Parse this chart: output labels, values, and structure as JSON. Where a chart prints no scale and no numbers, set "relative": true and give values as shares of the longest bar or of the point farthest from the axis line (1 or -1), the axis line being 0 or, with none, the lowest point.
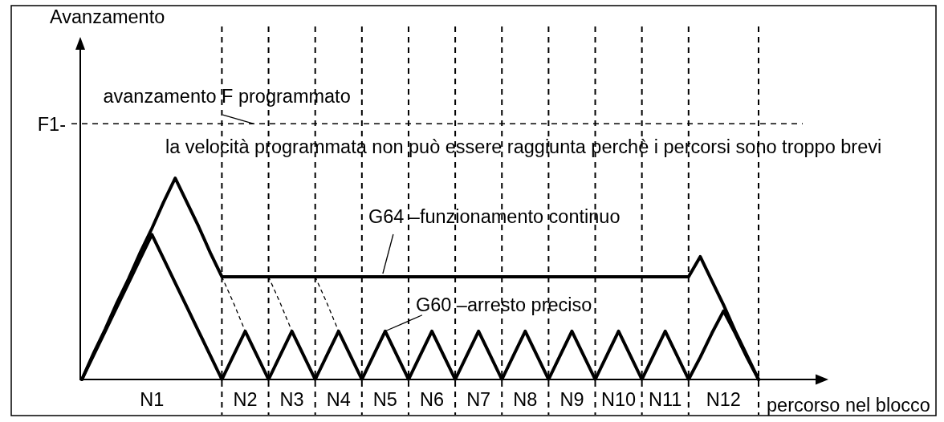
{
  "chart_data": {
    "type": "line",
    "xlabel": "percorso nel blocco",
    "relative": true,
    "categories": [
      null,
      null,
      null,
      null,
      null,
      null,
      "N1",
      null,
      null,
      null,
      null,
      null,
      null,
      null,
      "N2",
      null,
      null,
      null,
      "N3",
      null,
      null,
      null,
      "N4",
      null,
      null,
      null,
      "N5",
      null,
      null,
      null,
      "N6",
      null,
      null,
      null,
      "N7",
      null,
      null,
      null,
      "N8",
      null,
      null,
      null,
      "N9",
      null,
      null,
      null,
      "N10",
      null,
      null,
      null,
      "N11",
      null,
      null,
      null,
      null,
      "N12",
      null,
      null,
      null
    ],
    "series": [
      {
        "color": "#000000",
        "line_style": "solid",
        "values": [
          0,
          0.13,
          0.25,
          0.38,
          0.5,
          0.63,
          0.75,
          0.88,
          1,
          0.88,
          0.76,
          0.63,
          0.51,
          0.51,
          0.51,
          0.51,
          0.51,
          0.51,
          0.51,
          0.51,
          0.51,
          0.51,
          0.51,
          0.51,
          0.51,
          0.51,
          0.51,
          0.51,
          0.51,
          0.51,
          0.51,
          0.51,
          0.51,
          0.51,
          0.51,
          0.51,
          0.51,
          0.51,
          0.51,
          0.51,
          0.51,
          0.51,
          0.51,
          0.51,
          0.51,
          0.51,
          0.51,
          0.51,
          0.51,
          0.51,
          0.51,
          0.51,
          0.51,
          0.61,
          0.49,
          0.37,
          0.24,
          0.12,
          0
        ]
      },
      {
        "color": "#000000",
        "line_style": "solid",
        "values": [
          0,
          0.12,
          0.24,
          0.36,
          0.48,
          0.6,
          0.72,
          0.6,
          0.48,
          0.36,
          0.24,
          0.12,
          0,
          0.12,
          0.24,
          0.12,
          0,
          0.12,
          0.24,
          0.12,
          0,
          0.12,
          0.24,
          0.12,
          0,
          0.12,
          0.24,
          0.12,
          0,
          0.12,
          0.24,
          0.12,
          0,
          0.12,
          0.24,
          0.12,
          0,
          0.12,
          0.24,
          0.12,
          0,
          0.12,
          0.24,
          0.12,
          0,
          0.12,
          0.24,
          0.12,
          0,
          0.12,
          0.24,
          0.12,
          0,
          0.11,
          0.23,
          0.34,
          0.23,
          0.11,
          0
        ]
      },
      {
        "color": "#000000",
        "line_style": "dotted",
        "values": [
          null,
          null,
          null,
          null,
          null,
          null,
          null,
          null,
          null,
          null,
          null,
          null,
          0.51,
          0.38,
          0.24,
          null,
          null,
          null,
          null,
          null,
          null,
          null,
          null,
          null,
          null,
          null,
          null,
          null,
          null,
          null,
          null,
          null,
          null,
          null,
          null,
          null,
          null,
          null,
          null,
          null,
          null,
          null,
          null,
          null,
          null,
          null,
          null,
          null,
          null,
          null,
          null,
          null,
          null,
          null,
          null,
          null,
          null,
          null,
          null
        ]
      },
      {
        "color": "#000000",
        "line_style": "dotted",
        "values": [
          null,
          null,
          null,
          null,
          null,
          null,
          null,
          null,
          null,
          null,
          null,
          null,
          null,
          null,
          null,
          null,
          0.51,
          0.38,
          0.24,
          null,
          null,
          null,
          null,
          null,
          null,
          null,
          null,
          null,
          null,
          null,
          null,
          null,
          null,
          null,
          null,
          null,
          null,
          null,
          null,
          null,
          null,
          null,
          null,
          null,
          null,
          null,
          null,
          null,
          null,
          null,
          null,
          null,
          null,
          null,
          null,
          null,
          null,
          null,
          null
        ]
      },
      {
        "color": "#000000",
        "line_style": "dotted",
        "values": [
          null,
          null,
          null,
          null,
          null,
          null,
          null,
          null,
          null,
          null,
          null,
          null,
          null,
          null,
          null,
          null,
          null,
          null,
          null,
          null,
          0.51,
          0.38,
          0.24,
          null,
          null,
          null,
          null,
          null,
          null,
          null,
          null,
          null,
          null,
          null,
          null,
          null,
          null,
          null,
          null,
          null,
          null,
          null,
          null,
          null,
          null,
          null,
          null,
          null,
          null,
          null,
          null,
          null,
          null,
          null,
          null,
          null,
          null,
          null,
          null
        ]
      }
    ],
    "ref_lines": [
      {
        "axis": "y",
        "value": 1.27,
        "label": "F1-",
        "color": "#000000",
        "line_style": "dashed"
      }
    ],
    "annotations": [
      "Avanzamento",
      {
        "text": "avanzamento F programmato",
        "x": "N2",
        "y": 1.27
      },
      "la velocità programmata non può essere raggiunta perchè i percorsi sono troppo brevi",
      {
        "text": "G64 –funzionamento continuo",
        "x": "N5",
        "y": 0.51
      },
      {
        "text": "G60 –arresto preciso",
        "x": "N5",
        "y": 0.24
      }
    ]
  }
}
